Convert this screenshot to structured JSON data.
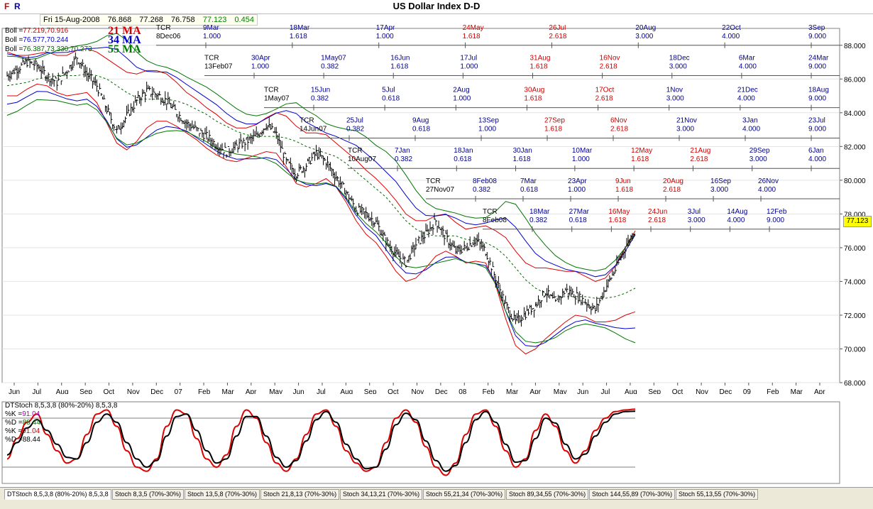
{
  "header": {
    "title": "US Dollar Index  D-D",
    "logo_f": "F",
    "logo_r": "R"
  },
  "quote": {
    "date": "Fri 15-Aug-2008",
    "open": "76.868",
    "high": "77.268",
    "low": "76.758",
    "close": "77.123",
    "change": "0.454"
  },
  "price_tag": "77.123",
  "legend": {
    "boll_lines": [
      {
        "prefix": "Boll =",
        "value": "77.219,70.916",
        "color": "#cc0000"
      },
      {
        "prefix": "Boll =",
        "value": "76.577,70.244",
        "color": "#0000cc"
      },
      {
        "prefix": "Boll =",
        "value": "76.387,73.330,70.273",
        "color": "#006600"
      }
    ],
    "ma_labels": [
      {
        "text": "21 MA",
        "color": "#dd0000"
      },
      {
        "text": "34 MA",
        "color": "#0000cc"
      },
      {
        "text": "55 MA",
        "color": "#007700"
      }
    ]
  },
  "stoch_legend": {
    "title": "DTStoch 8,5,3,8 (80%-20%) 8,5,3,8",
    "lines": [
      {
        "label": "%K =",
        "value": "91.04",
        "color": "#aa00aa"
      },
      {
        "label": "%D =",
        "value": "88.44",
        "color": "#006600"
      },
      {
        "label": "%K =",
        "value": "91.04",
        "color": "#cc0000"
      },
      {
        "label": "%D =",
        "value": "88.44",
        "color": "#000000"
      }
    ]
  },
  "tabs": [
    "DTStoch 8,5,3,8 (80%-20%) 8,5,3,8",
    "Stoch 8,3,5 (70%-30%)",
    "Stoch 13,5,8 (70%-30%)",
    "Stoch 21,8,13 (70%-30%)",
    "Stoch 34,13,21 (70%-30%)",
    "Stoch 55,21,34 (70%-30%)",
    "Stoch 89,34,55 (70%-30%)",
    "Stoch 144,55,89 (70%-30%)",
    "Stoch 55,13,55 (70%-30%)"
  ],
  "chart_data": {
    "type": "line",
    "title": "US Dollar Index  D-D",
    "y_ticks": [
      "88.000",
      "86.000",
      "84.000",
      "82.000",
      "80.000",
      "78.000",
      "76.000",
      "74.000",
      "72.000",
      "70.000",
      "68.000"
    ],
    "ylim": [
      68.0,
      89.0
    ],
    "x_ticks": [
      "Jun",
      "Jul",
      "Aug",
      "Sep",
      "Oct",
      "Nov",
      "Dec",
      "07",
      "Feb",
      "Mar",
      "Apr",
      "May",
      "Jun",
      "Jul",
      "Aug",
      "Sep",
      "Oct",
      "Nov",
      "Dec",
      "08",
      "Feb",
      "Mar",
      "Apr",
      "May",
      "Jun",
      "Jul",
      "Aug",
      "Sep",
      "Oct",
      "Nov",
      "Dec",
      "09",
      "Feb",
      "Mar",
      "Apr"
    ],
    "close_path": [
      86.2,
      86.6,
      87.0,
      86.8,
      86.2,
      85.8,
      86.5,
      87.3,
      86.3,
      85.6,
      84.2,
      82.9,
      83.8,
      84.7,
      85.3,
      85.1,
      84.7,
      84.0,
      83.4,
      83.0,
      82.6,
      82.1,
      81.7,
      82.0,
      82.3,
      82.6,
      83.3,
      82.7,
      81.1,
      80.4,
      80.9,
      81.6,
      81.1,
      80.2,
      79.3,
      78.3,
      78.0,
      77.5,
      76.4,
      75.6,
      75.1,
      76.2,
      76.8,
      77.6,
      76.6,
      75.8,
      76.0,
      76.5,
      75.8,
      74.2,
      72.6,
      71.6,
      72.1,
      72.6,
      73.4,
      72.7,
      73.5,
      73.2,
      72.8,
      72.3,
      73.6,
      74.7,
      76.0,
      77.1
    ],
    "series": [
      {
        "name": "21 MA",
        "color": "#dd0000",
        "values": [
          86.3,
          86.2,
          86.4,
          86.6,
          86.6,
          86.3,
          86.2,
          86.4,
          86.5,
          86.1,
          85.3,
          84.5,
          84.1,
          84.3,
          84.8,
          85.0,
          84.9,
          84.5,
          84.0,
          83.6,
          83.1,
          82.7,
          82.3,
          82.1,
          82.2,
          82.4,
          82.7,
          82.8,
          82.3,
          81.5,
          81.2,
          81.3,
          81.4,
          80.9,
          80.2,
          79.4,
          78.7,
          78.2,
          77.5,
          76.7,
          76.0,
          75.9,
          76.2,
          76.7,
          76.9,
          76.5,
          76.1,
          76.2,
          76.2,
          75.4,
          74.2,
          73.0,
          72.4,
          72.4,
          72.7,
          72.9,
          73.1,
          73.3,
          73.1,
          72.8,
          72.9,
          73.3,
          74.0,
          74.6
        ]
      },
      {
        "name": "34 MA",
        "color": "#0000cc",
        "values": [
          86.0,
          86.0,
          86.1,
          86.3,
          86.4,
          86.3,
          86.2,
          86.2,
          86.3,
          86.1,
          85.7,
          85.1,
          84.6,
          84.4,
          84.5,
          84.7,
          84.8,
          84.6,
          84.3,
          83.9,
          83.5,
          83.1,
          82.7,
          82.4,
          82.3,
          82.3,
          82.5,
          82.6,
          82.4,
          82.0,
          81.6,
          81.4,
          81.3,
          81.1,
          80.6,
          80.0,
          79.4,
          78.9,
          78.2,
          77.5,
          76.8,
          76.4,
          76.3,
          76.5,
          76.7,
          76.6,
          76.3,
          76.2,
          76.2,
          75.8,
          75.0,
          74.0,
          73.3,
          72.9,
          72.8,
          72.9,
          73.0,
          73.1,
          73.1,
          72.9,
          72.9,
          73.1,
          73.5,
          74.0
        ]
      },
      {
        "name": "55 MA",
        "color": "#007700",
        "values": [
          85.6,
          85.7,
          85.8,
          86.0,
          86.1,
          86.2,
          86.2,
          86.2,
          86.3,
          86.2,
          86.0,
          85.6,
          85.2,
          84.9,
          84.8,
          84.8,
          84.8,
          84.7,
          84.5,
          84.2,
          83.9,
          83.5,
          83.2,
          82.9,
          82.7,
          82.6,
          82.6,
          82.6,
          82.5,
          82.3,
          82.0,
          81.8,
          81.6,
          81.4,
          81.0,
          80.5,
          80.0,
          79.5,
          79.0,
          78.3,
          77.6,
          77.1,
          76.8,
          76.7,
          76.7,
          76.7,
          76.5,
          76.4,
          76.3,
          76.0,
          75.5,
          74.8,
          74.1,
          73.6,
          73.3,
          73.1,
          73.1,
          73.1,
          73.1,
          73.0,
          73.0,
          73.1,
          73.3,
          73.6
        ]
      }
    ],
    "band_width": [
      1.3,
      1.2,
      1.0,
      0.9,
      1.0,
      1.1,
      1.2,
      1.3,
      1.3,
      1.5,
      1.9,
      2.3,
      2.3,
      2.0,
      1.7,
      1.5,
      1.4,
      1.3,
      1.2,
      1.2,
      1.2,
      1.2,
      1.1,
      1.0,
      0.9,
      0.9,
      1.0,
      1.2,
      1.5,
      1.7,
      1.6,
      1.5,
      1.3,
      1.3,
      1.5,
      1.8,
      1.9,
      1.9,
      2.0,
      2.1,
      2.0,
      1.7,
      1.4,
      1.2,
      1.1,
      1.0,
      1.0,
      1.0,
      1.1,
      1.6,
      2.4,
      2.8,
      2.7,
      2.4,
      2.1,
      1.8,
      1.5,
      1.3,
      1.2,
      1.2,
      1.3,
      1.6,
      2.0,
      2.4
    ],
    "stoch_k": [
      30,
      55,
      75,
      85,
      60,
      40,
      25,
      30,
      60,
      85,
      90,
      70,
      40,
      20,
      15,
      30,
      70,
      90,
      85,
      55,
      30,
      20,
      35,
      70,
      90,
      80,
      50,
      25,
      15,
      30,
      60,
      85,
      90,
      70,
      40,
      25,
      15,
      20,
      50,
      80,
      90,
      75,
      45,
      20,
      10,
      25,
      60,
      85,
      90,
      70,
      40,
      20,
      30,
      65,
      85,
      70,
      40,
      25,
      40,
      65,
      80,
      88,
      90,
      91
    ],
    "stoch_d": [
      35,
      50,
      68,
      78,
      65,
      48,
      32,
      30,
      50,
      75,
      85,
      75,
      50,
      30,
      20,
      28,
      58,
      82,
      85,
      65,
      40,
      25,
      30,
      58,
      82,
      82,
      58,
      32,
      20,
      28,
      52,
      78,
      88,
      75,
      48,
      30,
      18,
      20,
      42,
      72,
      86,
      78,
      52,
      28,
      15,
      22,
      50,
      78,
      88,
      75,
      48,
      26,
      28,
      55,
      80,
      74,
      48,
      30,
      36,
      58,
      75,
      85,
      88,
      88.44
    ],
    "stoch_levels": [
      80,
      20
    ],
    "fib_timelines": [
      {
        "label": "TCR",
        "date": "8Dec06",
        "y_value": 88.0,
        "color": "#000000",
        "marks": [
          [
            "9Mar",
            "1.000",
            "#00008b"
          ],
          [
            "18Mar",
            "1.618",
            "#00008b"
          ],
          [
            "17Apr",
            "1.000",
            "#00008b"
          ],
          [
            "24May",
            "1.618",
            "#cc0000"
          ],
          [
            "26Jul",
            "2.618",
            "#cc0000"
          ],
          [
            "20Aug",
            "3.000",
            "#00008b"
          ],
          [
            "22Oct",
            "4.000",
            "#00008b"
          ],
          [
            "3Sep",
            "9.000",
            "#00008b"
          ]
        ]
      },
      {
        "label": "TCR",
        "date": "13Feb07",
        "y_value": 86.2,
        "color": "#000000",
        "marks": [
          [
            "30Apr",
            "1.000",
            "#00008b"
          ],
          [
            "1May07",
            "0.382",
            "#00008b"
          ],
          [
            "16Jun",
            "1.618",
            "#00008b"
          ],
          [
            "17Jul",
            "1.000",
            "#00008b"
          ],
          [
            "31Aug",
            "1.618",
            "#cc0000"
          ],
          [
            "16Nov",
            "2.618",
            "#cc0000"
          ],
          [
            "18Dec",
            "3.000",
            "#00008b"
          ],
          [
            "6Mar",
            "4.000",
            "#00008b"
          ],
          [
            "24Mar",
            "9.000",
            "#00008b"
          ]
        ]
      },
      {
        "label": "TCR",
        "date": "1May07",
        "y_value": 84.3,
        "color": "#000000",
        "marks": [
          [
            "15Jun",
            "0.382",
            "#00008b"
          ],
          [
            "5Jul",
            "0.618",
            "#00008b"
          ],
          [
            "2Aug",
            "1.000",
            "#00008b"
          ],
          [
            "30Aug",
            "1.618",
            "#cc0000"
          ],
          [
            "17Oct",
            "2.618",
            "#cc0000"
          ],
          [
            "1Nov",
            "3.000",
            "#00008b"
          ],
          [
            "21Dec",
            "4.000",
            "#00008b"
          ],
          [
            "18Aug",
            "9.000",
            "#00008b"
          ]
        ]
      },
      {
        "label": "TCR",
        "date": "14Jun07",
        "y_value": 82.5,
        "color": "#000000",
        "marks": [
          [
            "25Jul",
            "0.382",
            "#00008b"
          ],
          [
            "9Aug",
            "0.618",
            "#00008b"
          ],
          [
            "13Sep",
            "1.000",
            "#00008b"
          ],
          [
            "27Sep",
            "1.618",
            "#cc0000"
          ],
          [
            "6Nov",
            "2.618",
            "#cc0000"
          ],
          [
            "21Nov",
            "3.000",
            "#00008b"
          ],
          [
            "3Jan",
            "4.000",
            "#00008b"
          ],
          [
            "23Jul",
            "9.000",
            "#00008b"
          ]
        ]
      },
      {
        "label": "TCR",
        "date": "10Aug07",
        "y_value": 80.7,
        "color": "#000000",
        "marks": [
          [
            "7Jan",
            "0.382",
            "#00008b"
          ],
          [
            "18Jan",
            "0.618",
            "#00008b"
          ],
          [
            "30Jan",
            "1.618",
            "#00008b"
          ],
          [
            "10Mar",
            "1.000",
            "#00008b"
          ],
          [
            "12May",
            "1.618",
            "#cc0000"
          ],
          [
            "21Aug",
            "2.618",
            "#cc0000"
          ],
          [
            "29Sep",
            "3.000",
            "#00008b"
          ],
          [
            "6Jan",
            "4.000",
            "#00008b"
          ]
        ]
      },
      {
        "label": "TCR",
        "date": "27Nov07",
        "y_value": 78.9,
        "color": "#000000",
        "marks": [
          [
            "8Feb08",
            "0.382",
            "#00008b"
          ],
          [
            "7Mar",
            "0.618",
            "#00008b"
          ],
          [
            "23Apr",
            "1.000",
            "#00008b"
          ],
          [
            "9Jun",
            "1.618",
            "#cc0000"
          ],
          [
            "20Aug",
            "2.618",
            "#cc0000"
          ],
          [
            "16Sep",
            "3.000",
            "#00008b"
          ],
          [
            "26Nov",
            "4.000",
            "#00008b"
          ]
        ]
      },
      {
        "label": "TCR",
        "date": "8Feb08",
        "y_value": 77.1,
        "color": "#000000",
        "marks": [
          [
            "18Mar",
            "0.382",
            "#00008b"
          ],
          [
            "27Mar",
            "0.618",
            "#00008b"
          ],
          [
            "16May",
            "1.618",
            "#cc0000"
          ],
          [
            "24Jun",
            "2.618",
            "#cc0000"
          ],
          [
            "3Jul",
            "3.000",
            "#00008b"
          ],
          [
            "14Aug",
            "4.000",
            "#00008b"
          ],
          [
            "12Feb",
            "9.000",
            "#00008b"
          ]
        ]
      }
    ]
  }
}
